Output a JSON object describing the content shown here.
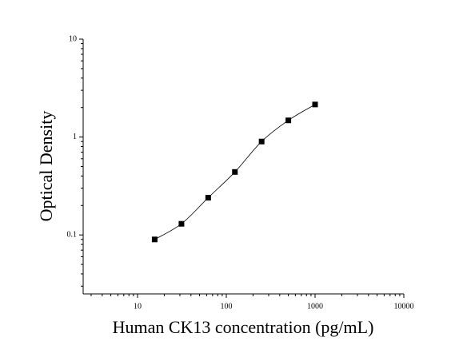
{
  "chart_data": {
    "type": "scatter",
    "x_label": "Human CK13 concentration (pg/mL)",
    "y_label": "Optical Density",
    "x": [
      15.6,
      31.25,
      62.5,
      125,
      250,
      500,
      1000
    ],
    "values": [
      0.09,
      0.13,
      0.24,
      0.44,
      0.9,
      1.48,
      2.15
    ],
    "color": "#000000",
    "fit_line": true,
    "xscale": "log",
    "yscale": "log",
    "xlim": [
      2.44,
      10000
    ],
    "ylim": [
      0.025,
      10
    ],
    "xticks": [
      10,
      100,
      1000,
      10000
    ],
    "yticks": [
      0.1,
      1,
      10
    ],
    "minor_ticks": true
  }
}
